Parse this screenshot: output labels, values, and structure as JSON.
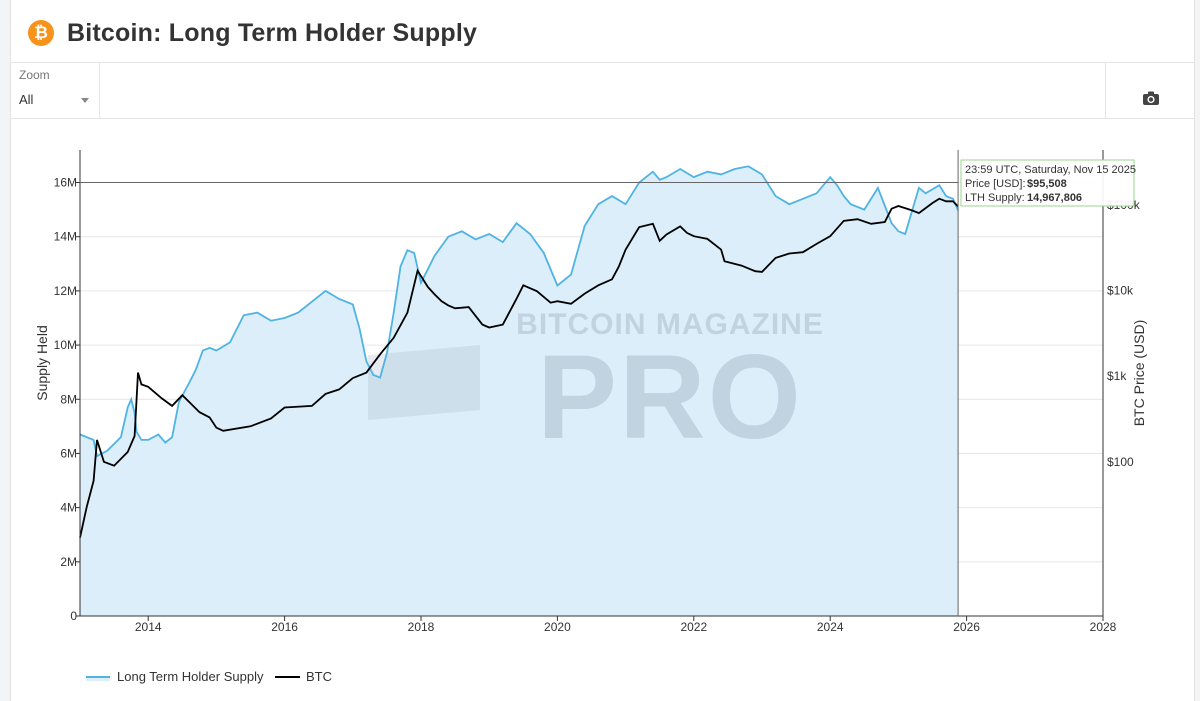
{
  "header": {
    "title": "Bitcoin: Long Term Holder Supply",
    "logo_glyph": "₿",
    "logo_color": "#f7931a"
  },
  "toolbar": {
    "zoom_label": "Zoom",
    "zoom_value": "All",
    "camera_icon": "camera-icon"
  },
  "watermark": {
    "line1": "BITCOIN MAGAZINE",
    "line2": "PRO"
  },
  "tooltip": {
    "time": "23:59 UTC, Saturday, Nov 15 2025",
    "price_label": "Price [USD]:",
    "price_value": "$95,508",
    "supply_label": "LTH Supply:",
    "supply_value": "14,967,806"
  },
  "legend": {
    "lth": "Long Term Holder Supply",
    "btc": "BTC"
  },
  "colors": {
    "lth_line": "#4fb3e3",
    "lth_fill": "#dbeef9",
    "btc_line": "#000000",
    "tooltip_border": "#9bd58e"
  },
  "chart_data": {
    "type": "line",
    "title": "Bitcoin: Long Term Holder Supply",
    "xlabel": "",
    "ylabel": "Supply Held",
    "y2label": "BTC Price (USD)",
    "xlim": [
      2013.0,
      2028.0
    ],
    "ylim": [
      0,
      17200000
    ],
    "y2_scale": "log",
    "x_ticks": [
      2014,
      2016,
      2018,
      2020,
      2022,
      2024,
      2026,
      2028
    ],
    "y_ticks": [
      0,
      2000000,
      4000000,
      6000000,
      8000000,
      10000000,
      12000000,
      14000000,
      16000000
    ],
    "y_tick_labels": [
      "0",
      "2M",
      "4M",
      "6M",
      "8M",
      "10M",
      "12M",
      "14M",
      "16M"
    ],
    "y2_ticks": [
      100,
      1000,
      10000,
      100000
    ],
    "y2_tick_labels": [
      "$100",
      "$1k",
      "$10k",
      "$100k"
    ],
    "grid": true,
    "legend_position": "bottom-left",
    "series": [
      {
        "name": "Long Term Holder Supply",
        "axis": "left",
        "x": [
          2013.0,
          2013.2,
          2013.25,
          2013.4,
          2013.6,
          2013.7,
          2013.75,
          2013.8,
          2013.83,
          2013.9,
          2014.0,
          2014.15,
          2014.25,
          2014.35,
          2014.45,
          2014.6,
          2014.7,
          2014.8,
          2014.9,
          2015.0,
          2015.2,
          2015.4,
          2015.6,
          2015.8,
          2016.0,
          2016.2,
          2016.4,
          2016.6,
          2016.8,
          2017.0,
          2017.1,
          2017.2,
          2017.3,
          2017.4,
          2017.5,
          2017.6,
          2017.7,
          2017.8,
          2017.9,
          2018.0,
          2018.2,
          2018.4,
          2018.6,
          2018.8,
          2019.0,
          2019.2,
          2019.4,
          2019.6,
          2019.8,
          2020.0,
          2020.2,
          2020.4,
          2020.6,
          2020.8,
          2021.0,
          2021.2,
          2021.4,
          2021.5,
          2021.6,
          2021.8,
          2022.0,
          2022.2,
          2022.4,
          2022.6,
          2022.8,
          2023.0,
          2023.2,
          2023.4,
          2023.6,
          2023.8,
          2024.0,
          2024.1,
          2024.2,
          2024.3,
          2024.5,
          2024.7,
          2024.9,
          2025.0,
          2025.1,
          2025.3,
          2025.4,
          2025.6,
          2025.7,
          2025.8,
          2025.875
        ],
        "y": [
          6700000,
          6500000,
          5900000,
          6100000,
          6600000,
          7700000,
          8000000,
          7500000,
          6800000,
          6500000,
          6500000,
          6700000,
          6400000,
          6600000,
          7900000,
          8600000,
          9100000,
          9800000,
          9900000,
          9800000,
          10100000,
          11100000,
          11200000,
          10900000,
          11000000,
          11200000,
          11600000,
          12000000,
          11700000,
          11500000,
          10600000,
          9400000,
          8900000,
          8800000,
          9700000,
          11200000,
          12900000,
          13500000,
          13400000,
          12300000,
          13300000,
          14000000,
          14200000,
          13900000,
          14100000,
          13800000,
          14500000,
          14100000,
          13400000,
          12200000,
          12600000,
          14400000,
          15200000,
          15500000,
          15200000,
          16000000,
          16400000,
          16100000,
          16200000,
          16500000,
          16200000,
          16400000,
          16300000,
          16500000,
          16600000,
          16300000,
          15500000,
          15200000,
          15400000,
          15600000,
          16200000,
          15900000,
          15500000,
          15200000,
          15000000,
          15800000,
          14500000,
          14200000,
          14100000,
          15800000,
          15600000,
          15900000,
          15500000,
          15400000,
          14967806
        ]
      },
      {
        "name": "BTC",
        "axis": "right",
        "x": [
          2013.0,
          2013.1,
          2013.2,
          2013.25,
          2013.35,
          2013.5,
          2013.7,
          2013.8,
          2013.85,
          2013.9,
          2014.0,
          2014.2,
          2014.35,
          2014.5,
          2014.6,
          2014.75,
          2014.9,
          2015.0,
          2015.1,
          2015.5,
          2015.8,
          2016.0,
          2016.4,
          2016.6,
          2016.8,
          2017.0,
          2017.2,
          2017.4,
          2017.6,
          2017.8,
          2017.95,
          2018.1,
          2018.2,
          2018.3,
          2018.4,
          2018.5,
          2018.7,
          2018.9,
          2019.0,
          2019.2,
          2019.4,
          2019.5,
          2019.7,
          2019.9,
          2020.0,
          2020.2,
          2020.4,
          2020.6,
          2020.8,
          2020.9,
          2021.0,
          2021.2,
          2021.4,
          2021.5,
          2021.6,
          2021.8,
          2021.9,
          2022.0,
          2022.2,
          2022.4,
          2022.45,
          2022.7,
          2022.9,
          2023.0,
          2023.2,
          2023.4,
          2023.6,
          2023.8,
          2024.0,
          2024.2,
          2024.4,
          2024.6,
          2024.8,
          2024.9,
          2025.0,
          2025.2,
          2025.3,
          2025.5,
          2025.6,
          2025.7,
          2025.8,
          2025.875
        ],
        "y": [
          13,
          30,
          60,
          180,
          100,
          90,
          130,
          200,
          1100,
          800,
          750,
          550,
          450,
          600,
          500,
          380,
          330,
          250,
          230,
          260,
          320,
          430,
          450,
          620,
          700,
          950,
          1100,
          1800,
          2800,
          5500,
          17000,
          11000,
          9000,
          7500,
          6700,
          6200,
          6400,
          4000,
          3700,
          4000,
          8000,
          11500,
          9800,
          7200,
          7500,
          7000,
          9200,
          11500,
          13500,
          19000,
          30000,
          55000,
          60000,
          38000,
          45000,
          56000,
          47000,
          43000,
          40000,
          30000,
          22000,
          19500,
          16800,
          16500,
          24000,
          27000,
          28000,
          35000,
          43000,
          65000,
          68000,
          60000,
          63000,
          90000,
          97000,
          86000,
          80000,
          105000,
          118000,
          110000,
          110000,
          95508
        ]
      }
    ]
  }
}
